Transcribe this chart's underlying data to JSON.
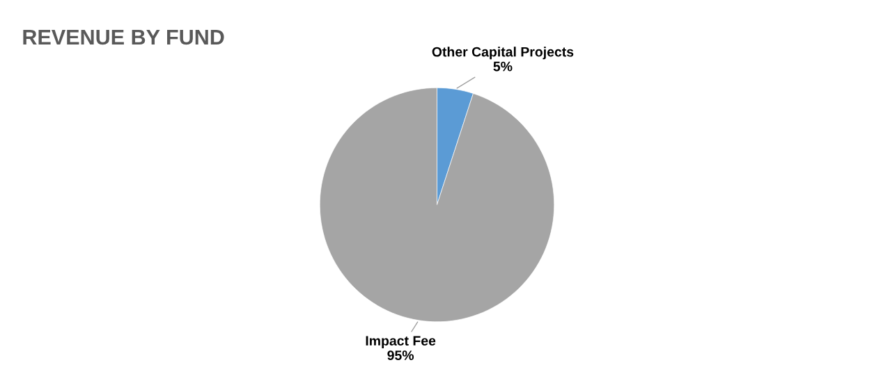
{
  "chart_data": {
    "type": "pie",
    "title": "REVENUE BY FUND",
    "categories": [
      "Other Capital Projects",
      "Impact Fee"
    ],
    "values": [
      5,
      95
    ],
    "value_labels": [
      "5%",
      "95%"
    ],
    "colors": [
      "#5b9bd5",
      "#a5a5a5"
    ]
  }
}
